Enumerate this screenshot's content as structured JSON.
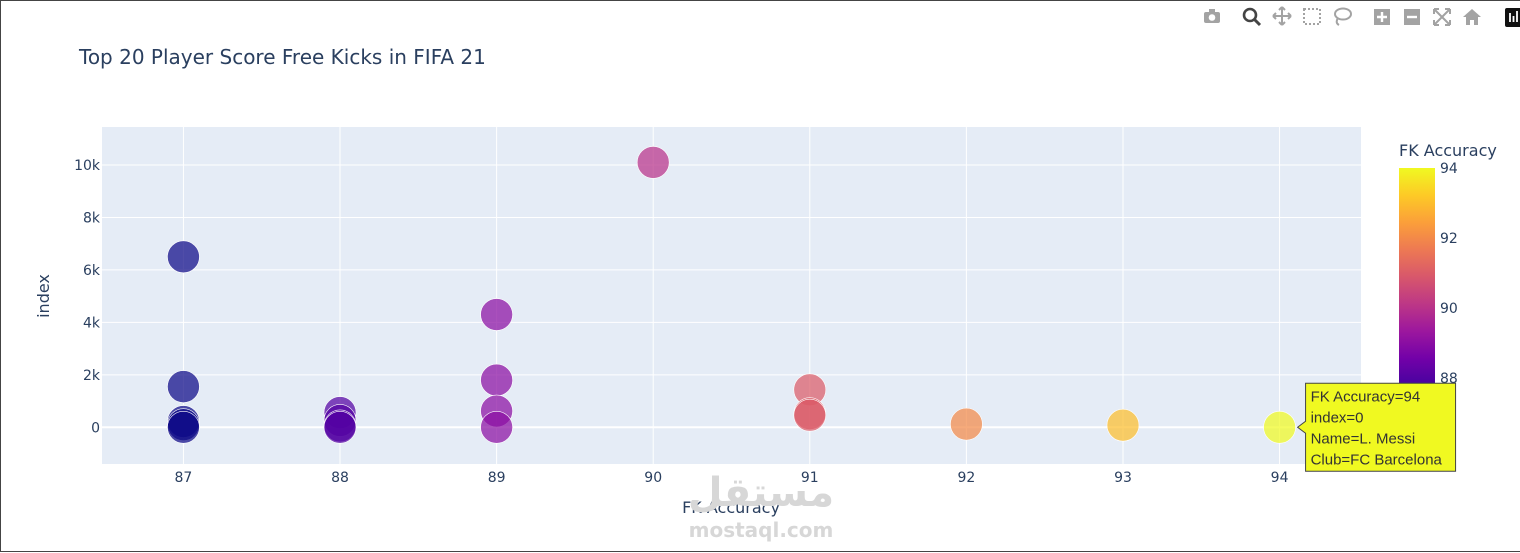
{
  "modebar": {
    "buttons": [
      {
        "name": "camera-icon",
        "glyph": "camera"
      },
      {
        "name": "zoom-icon",
        "glyph": "zoom"
      },
      {
        "name": "pan-icon",
        "glyph": "pan"
      },
      {
        "name": "box-select-icon",
        "glyph": "box"
      },
      {
        "name": "lasso-select-icon",
        "glyph": "lasso"
      },
      {
        "name": "zoom-in-icon",
        "glyph": "plus"
      },
      {
        "name": "zoom-out-icon",
        "glyph": "minus"
      },
      {
        "name": "autoscale-icon",
        "glyph": "autoscale"
      },
      {
        "name": "reset-axes-icon",
        "glyph": "home"
      },
      {
        "name": "plotly-logo-icon",
        "glyph": "logo"
      }
    ]
  },
  "colors": {
    "plot_bg": "#e5ecf6",
    "grid": "#ffffff",
    "text": "#2a3f5f",
    "hover_bg": "#f0f921",
    "colorscale": [
      "#0d0887",
      "#46039f",
      "#7201a8",
      "#9c179e",
      "#bd3786",
      "#d8576b",
      "#ed7953",
      "#fb9f3a",
      "#fdca26",
      "#f0f921"
    ]
  },
  "chart_data": {
    "type": "scatter",
    "title": "Top 20 Player Score Free Kicks in FIFA 21",
    "xlabel": "FK Accuracy",
    "ylabel": "index",
    "xlim": [
      86.48,
      94.52
    ],
    "ylim": [
      -1400,
      11450
    ],
    "xticks": [
      87,
      88,
      89,
      90,
      91,
      92,
      93,
      94
    ],
    "yticks": [
      0,
      2000,
      4000,
      6000,
      8000,
      10000
    ],
    "ytick_labels": [
      "0",
      "2k",
      "4k",
      "6k",
      "8k",
      "10k"
    ],
    "grid": true,
    "colorbar": {
      "title": "FK Accuracy",
      "range": [
        87,
        94
      ],
      "ticks": [
        88,
        90,
        92,
        94
      ],
      "tick_labels": [
        "88",
        "90",
        "92",
        "94"
      ]
    },
    "points": [
      {
        "x": 94,
        "y": 0
      },
      {
        "x": 93,
        "y": 80
      },
      {
        "x": 92,
        "y": 120
      },
      {
        "x": 91,
        "y": 1430
      },
      {
        "x": 91,
        "y": 520
      },
      {
        "x": 91,
        "y": 460
      },
      {
        "x": 90,
        "y": 10100
      },
      {
        "x": 89,
        "y": 4300
      },
      {
        "x": 89,
        "y": 1800
      },
      {
        "x": 89,
        "y": 620
      },
      {
        "x": 89,
        "y": 0
      },
      {
        "x": 88,
        "y": 560
      },
      {
        "x": 88,
        "y": 260
      },
      {
        "x": 88,
        "y": 50
      },
      {
        "x": 88,
        "y": 0
      },
      {
        "x": 87,
        "y": 6500
      },
      {
        "x": 87,
        "y": 1550
      },
      {
        "x": 87,
        "y": 220
      },
      {
        "x": 87,
        "y": 100
      },
      {
        "x": 87,
        "y": 0
      }
    ],
    "hover": {
      "lines": [
        "FK Accuracy=94",
        "index=0",
        "Name=L. Messi",
        "Club=FC Barcelona"
      ]
    }
  },
  "watermark": {
    "line1": "مستقل",
    "line2": "mostaql.com"
  }
}
